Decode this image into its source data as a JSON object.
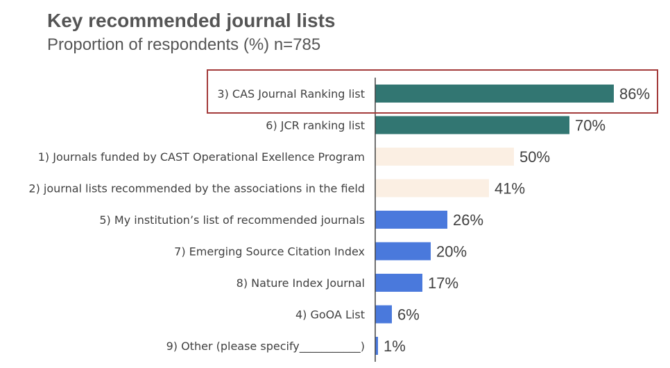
{
  "header": {
    "title": "Key recommended journal lists",
    "subtitle": "Proportion of respondents (%) n=785"
  },
  "chart_data": {
    "type": "bar",
    "orientation": "horizontal",
    "title": "Key recommended journal lists",
    "subtitle": "Proportion of respondents (%) n=785",
    "xlabel": "",
    "ylabel": "",
    "xlim": [
      0,
      100
    ],
    "grid": false,
    "categories": [
      "3) CAS Journal Ranking list",
      "6) JCR ranking list",
      "1) Journals funded by CAST Operational Exellence Program",
      "2) journal lists recommended by the associations in the field",
      "5) My institution’s list of recommended journals",
      "7) Emerging Source Citation Index",
      "8) Nature Index Journal",
      "4) GoOA List",
      "9) Other (please specify___________)"
    ],
    "values": [
      86,
      70,
      50,
      41,
      26,
      20,
      17,
      6,
      1
    ],
    "value_labels": [
      "86%",
      "70%",
      "50%",
      "41%",
      "26%",
      "20%",
      "17%",
      "6%",
      "1%"
    ],
    "bar_colors": [
      "#327672",
      "#327672",
      "#FBEFE3",
      "#FBEFE3",
      "#4A79DC",
      "#4A79DC",
      "#4A79DC",
      "#4A79DC",
      "#4A79DC"
    ],
    "highlighted_category": "3) CAS Journal Ranking list",
    "highlight_color": "#A33A3A"
  }
}
